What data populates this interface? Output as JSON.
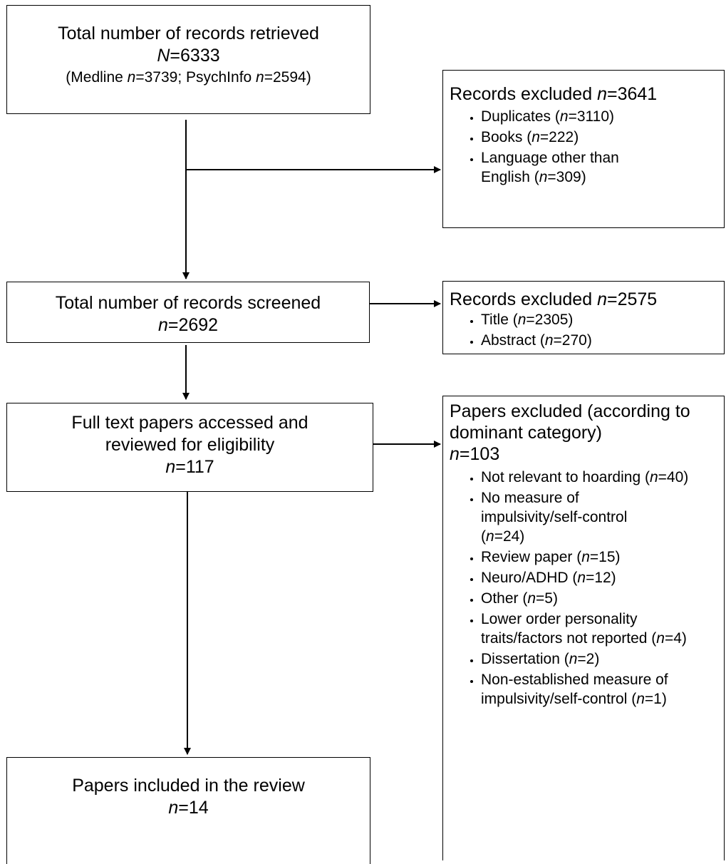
{
  "box1": {
    "line1": "Total number of records retrieved",
    "n_symbol": "N",
    "n_value": "=6333",
    "detail_prefix": "(Medline ",
    "detail_n1": "n",
    "detail_v1": "=3739; PsychInfo ",
    "detail_n2": "n",
    "detail_v2": "=2594)"
  },
  "excl1": {
    "head_text": "Records excluded ",
    "head_n": "n",
    "head_value": "=3641",
    "items": [
      {
        "pre": "Duplicates (",
        "n": "n",
        "post": "=3110)"
      },
      {
        "pre": "Books (",
        "n": "n",
        "post": "=222)"
      },
      {
        "pre": "Language other than English (",
        "n": "n",
        "post": "=309)"
      }
    ]
  },
  "box2": {
    "line1": "Total number of records screened",
    "n": "n",
    "value": "=2692"
  },
  "excl2": {
    "head_text": "Records excluded ",
    "head_n": "n",
    "head_value": "=2575",
    "items": [
      {
        "pre": "Title (",
        "n": "n",
        "post": "=2305)"
      },
      {
        "pre": "Abstract (",
        "n": "n",
        "post": "=270)"
      }
    ]
  },
  "box3": {
    "line1": "Full text papers accessed and",
    "line2": "reviewed for eligibility",
    "n": "n",
    "value": "=117"
  },
  "excl3": {
    "head_text": "Papers excluded (according to dominant category)",
    "head_n": "n",
    "head_value": "=103",
    "items": [
      {
        "pre": "Not relevant to hoarding (",
        "n": "n",
        "post": "=40)"
      },
      {
        "pre": "No measure of impulsivity/self-control (",
        "n": "n",
        "post": "=24)"
      },
      {
        "pre": "Review paper (",
        "n": "n",
        "post": "=15)"
      },
      {
        "pre": "Neuro/ADHD (",
        "n": "n",
        "post": "=12)"
      },
      {
        "pre": "Other (",
        "n": "n",
        "post": "=5)"
      },
      {
        "pre": "Lower order personality traits/factors not reported (",
        "n": "n",
        "post": "=4)"
      },
      {
        "pre": "Dissertation (",
        "n": "n",
        "post": "=2)"
      },
      {
        "pre": "Non-established measure of impulsivity/self-control (",
        "n": "n",
        "post": "=1)"
      }
    ]
  },
  "box4": {
    "line1": "Papers included in the review",
    "n": "n",
    "value": "=14"
  }
}
